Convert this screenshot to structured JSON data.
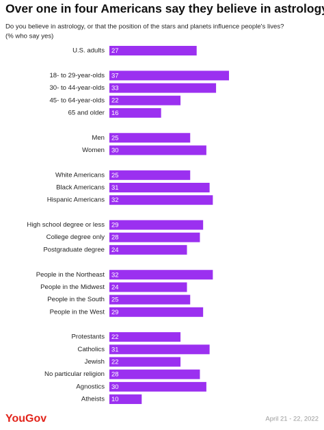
{
  "chart_data": {
    "type": "bar",
    "orientation": "horizontal",
    "title": "Over one in four Americans say they believe in astrology",
    "subtitle": "Do you believe in astrology, or that the position of the stars and planets influence people's lives?",
    "unit_note": "(% who say yes)",
    "color": "#9b30f0",
    "categories": [
      "U.S. adults",
      null,
      "18- to 29-year-olds",
      "30- to 44-year-olds",
      "45- to 64-year-olds",
      "65 and older",
      null,
      "Men",
      "Women",
      null,
      "White Americans",
      "Black Americans",
      "Hispanic Americans",
      null,
      "High school degree or less",
      "College degree only",
      "Postgraduate degree",
      null,
      "People in the Northeast",
      "People in the Midwest",
      "People in the South",
      "People in the West",
      null,
      "Protestants",
      "Catholics",
      "Jewish",
      "No particular religion",
      "Agnostics",
      "Atheists"
    ],
    "values": [
      27,
      null,
      37,
      33,
      22,
      16,
      null,
      25,
      30,
      null,
      25,
      31,
      32,
      null,
      29,
      28,
      24,
      null,
      32,
      24,
      25,
      29,
      null,
      22,
      31,
      22,
      28,
      30,
      10
    ],
    "source": "YouGov",
    "date": "April 21 - 22, 2022"
  }
}
